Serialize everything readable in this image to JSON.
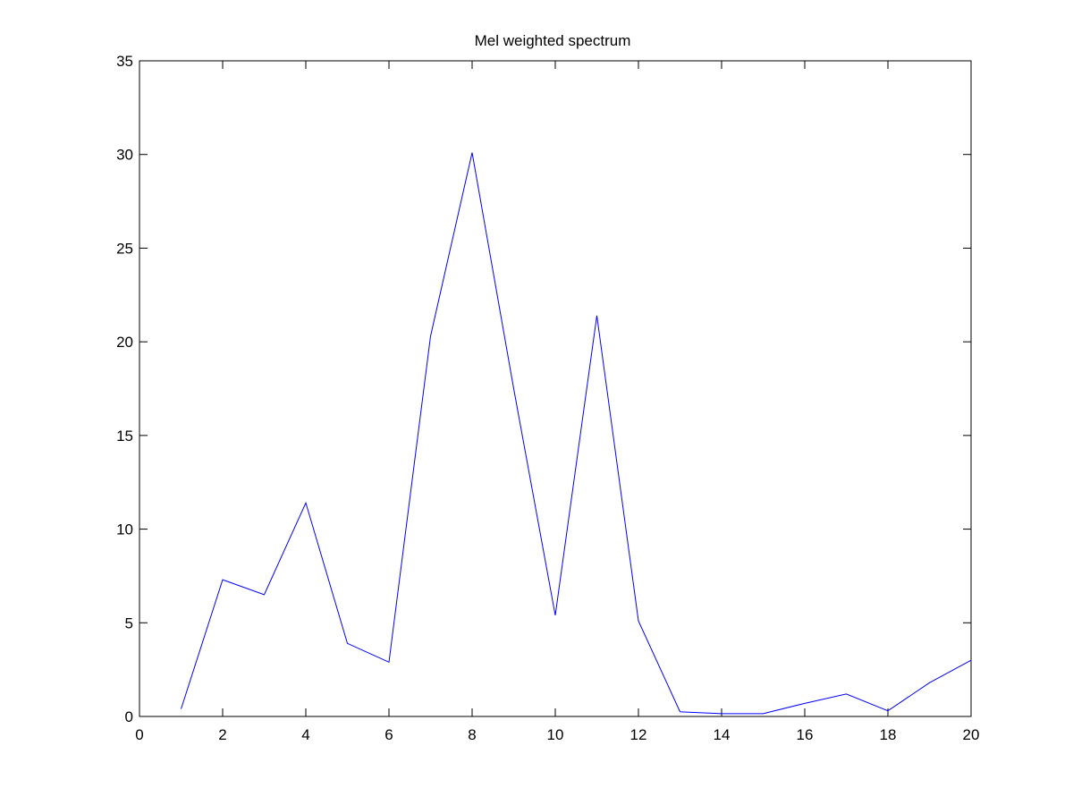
{
  "chart_data": {
    "type": "line",
    "title": "Mel weighted spectrum",
    "xlabel": "",
    "ylabel": "",
    "xlim": [
      0,
      20
    ],
    "ylim": [
      0,
      35
    ],
    "x_ticks": [
      0,
      2,
      4,
      6,
      8,
      10,
      12,
      14,
      16,
      18,
      20
    ],
    "y_ticks": [
      0,
      5,
      10,
      15,
      20,
      25,
      30,
      35
    ],
    "x_tick_labels": [
      "0",
      "2",
      "4",
      "6",
      "8",
      "10",
      "12",
      "14",
      "16",
      "18",
      "20"
    ],
    "y_tick_labels": [
      "0",
      "5",
      "10",
      "15",
      "20",
      "25",
      "30",
      "35"
    ],
    "grid": false,
    "legend": "none",
    "series": [
      {
        "color": "#0000ff",
        "x": [
          1,
          2,
          3,
          4,
          5,
          6,
          7,
          8,
          9,
          10,
          11,
          12,
          13,
          14,
          15,
          16,
          17,
          18,
          19,
          20
        ],
        "values": [
          0.4,
          7.3,
          6.5,
          11.4,
          3.9,
          2.9,
          20.3,
          30.1,
          17.5,
          5.4,
          21.4,
          5.1,
          0.25,
          0.15,
          0.15,
          0.7,
          1.2,
          0.3,
          1.8,
          3.0
        ]
      }
    ]
  }
}
